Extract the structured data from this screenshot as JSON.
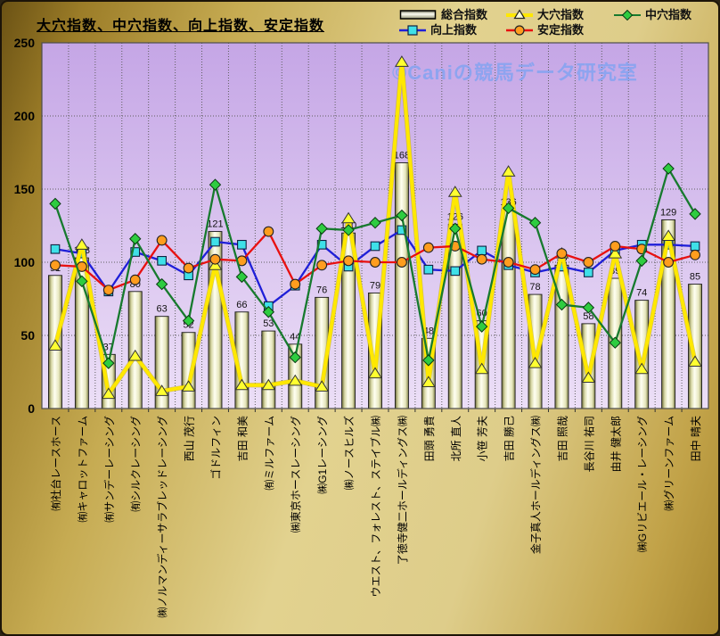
{
  "title": "大穴指数、中穴指数、向上指数、安定指数",
  "watermark": "©Caniの競馬データ研究室",
  "legend": {
    "items": [
      {
        "label": "総合指数",
        "swatch": "bar"
      },
      {
        "label": "大穴指数",
        "swatch": "triangle"
      },
      {
        "label": "中穴指数",
        "swatch": "diamond"
      },
      {
        "label": "向上指数",
        "swatch": "square"
      },
      {
        "label": "安定指数",
        "swatch": "circle"
      }
    ]
  },
  "colors": {
    "plot_bg_top": "#c5a6e6",
    "plot_bg_bottom": "#ecdff7",
    "grid": "#5f5f5f",
    "watermark": "#7fa3f2",
    "bar_body": "#fffff2",
    "bar_edge": "#6e6e38",
    "line_oana": "#ffe800",
    "marker_oana": "#ffff30",
    "line_chuana": "#177a2e",
    "marker_chuana": "#2ecc40",
    "line_kojo": "#1f1fd8",
    "marker_kojo": "#3fe0e8",
    "line_antei": "#e81010",
    "marker_antei": "#ff9d1e"
  },
  "chart_data": {
    "type": "bar+line combo",
    "title": "大穴指数、中穴指数、向上指数、安定指数",
    "xlabel": "",
    "ylabel": "",
    "ylim": [
      0,
      250
    ],
    "yticks": [
      0,
      50,
      100,
      150,
      200,
      250
    ],
    "grid": true,
    "legend_position": "top-right",
    "bar_labels": true,
    "categories": [
      "㈲社台レースホース",
      "㈲キャロットファーム",
      "㈲サンデーレーシング",
      "㈲シルクレーシング",
      "㈱ノルマンディーサラブレッドレーシング",
      "西山 茂行",
      "ゴドルフィン",
      "吉田 和美",
      "㈲ミルファーム",
      "㈱東京ホースレーシング",
      "㈱G1レーシング",
      "㈱ノースヒルズ",
      "ウエスト、フォレスト、ステイブル㈱",
      "了徳寺健二ホールディングス㈱",
      "田頭 勇貴",
      "北所 直人",
      "小笹 芳夫",
      "吉田 勝己",
      "金子真人ホールディングス㈱",
      "吉田 照哉",
      "長谷川 祐司",
      "由井 健太郎",
      "㈱Gリビエール・レーシング",
      "㈱グリーンファーム",
      "田中 晴夫"
    ],
    "series": [
      {
        "name": "総合指数",
        "type": "bar",
        "values": [
          91,
          103,
          37,
          80,
          63,
          52,
          121,
          66,
          53,
          44,
          76,
          120,
          79,
          168,
          48,
          126,
          60,
          136,
          78,
          98,
          58,
          89,
          74,
          129,
          85
        ]
      },
      {
        "name": "向上指数",
        "type": "line",
        "marker": "square",
        "line_color": "#1f1fd8",
        "marker_color": "#3fe0e8",
        "values": [
          109,
          106,
          80,
          107,
          101,
          91,
          114,
          112,
          70,
          84,
          112,
          97,
          111,
          122,
          95,
          94,
          108,
          98,
          93,
          97,
          93,
          108,
          112,
          112,
          111
        ]
      },
      {
        "name": "大穴指数",
        "type": "line",
        "marker": "triangle",
        "line_color": "#ffe800",
        "marker_color": "#ffff30",
        "values": [
          43,
          112,
          10,
          36,
          12,
          15,
          98,
          16,
          16,
          19,
          15,
          130,
          24,
          237,
          18,
          148,
          27,
          162,
          31,
          106,
          21,
          106,
          27,
          118,
          32
        ]
      },
      {
        "name": "安定指数",
        "type": "line",
        "marker": "circle",
        "line_color": "#e81010",
        "marker_color": "#ff9d1e",
        "values": [
          98,
          97,
          81,
          88,
          115,
          96,
          102,
          101,
          121,
          85,
          98,
          101,
          100,
          100,
          110,
          111,
          102,
          100,
          95,
          106,
          100,
          111,
          109,
          100,
          105
        ]
      },
      {
        "name": "中穴指数",
        "type": "line",
        "marker": "diamond",
        "line_color": "#177a2e",
        "marker_color": "#2ecc40",
        "values": [
          140,
          87,
          31,
          116,
          85,
          60,
          153,
          90,
          66,
          35,
          123,
          122,
          127,
          132,
          33,
          123,
          56,
          137,
          127,
          71,
          69,
          45,
          101,
          164,
          133
        ]
      }
    ]
  }
}
